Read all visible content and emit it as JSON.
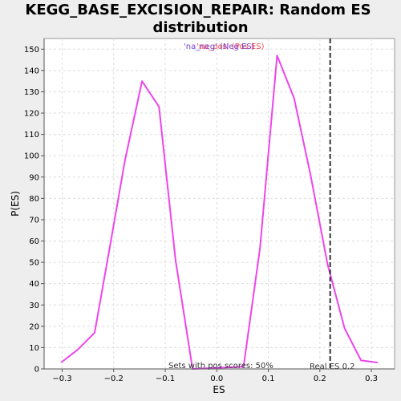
{
  "chart_data": {
    "type": "line",
    "title_line1": "KEGG_BASE_EXCISION_REPAIR: Random ES",
    "title_line2": "distribution",
    "xlabel": "ES",
    "ylabel": "P(ES)",
    "xlim": [
      -0.335,
      0.345
    ],
    "ylim": [
      0,
      155
    ],
    "x_ticks": [
      -0.3,
      -0.2,
      -0.1,
      0.0,
      0.1,
      0.2,
      0.3
    ],
    "x_tick_labels": [
      "−0.3",
      "−0.2",
      "−0.1",
      "0.0",
      "0.1",
      "0.2",
      "0.3"
    ],
    "y_ticks": [
      0,
      10,
      20,
      30,
      40,
      50,
      60,
      70,
      80,
      90,
      100,
      110,
      120,
      130,
      140,
      150
    ],
    "y_tick_labels": [
      "0",
      "10",
      "20",
      "30",
      "40",
      "50",
      "60",
      "70",
      "80",
      "90",
      "100",
      "110",
      "120",
      "130",
      "140",
      "150"
    ],
    "grid": true,
    "legend": {
      "neg_label": "'na_neg' (Neg ES)",
      "pos_label": "'na_pos' (Pos ES)",
      "neg_color": "#7b3fd0",
      "pos_color": "#ff4a4a"
    },
    "series": [
      {
        "color": "#ee44ee",
        "x": [
          -0.302,
          -0.27,
          -0.237,
          -0.204,
          -0.178,
          -0.145,
          -0.112,
          -0.08,
          -0.047,
          0.052,
          0.084,
          0.117,
          0.15,
          0.182,
          0.215,
          0.248,
          0.28,
          0.312
        ],
        "y": [
          3,
          9,
          17,
          62,
          98,
          135,
          123,
          51,
          0,
          1,
          57,
          147,
          127,
          91,
          49,
          19,
          4,
          3
        ]
      }
    ],
    "real_es": {
      "value": 0.22,
      "label": "Real ES 0.2",
      "color": "#333333"
    },
    "annotation": "Sets with pos scores: 50%"
  },
  "colors": {
    "background": "#eeeeee",
    "plot_background": "#ffffff",
    "grid": "#dddddd",
    "axis": "#555555"
  }
}
